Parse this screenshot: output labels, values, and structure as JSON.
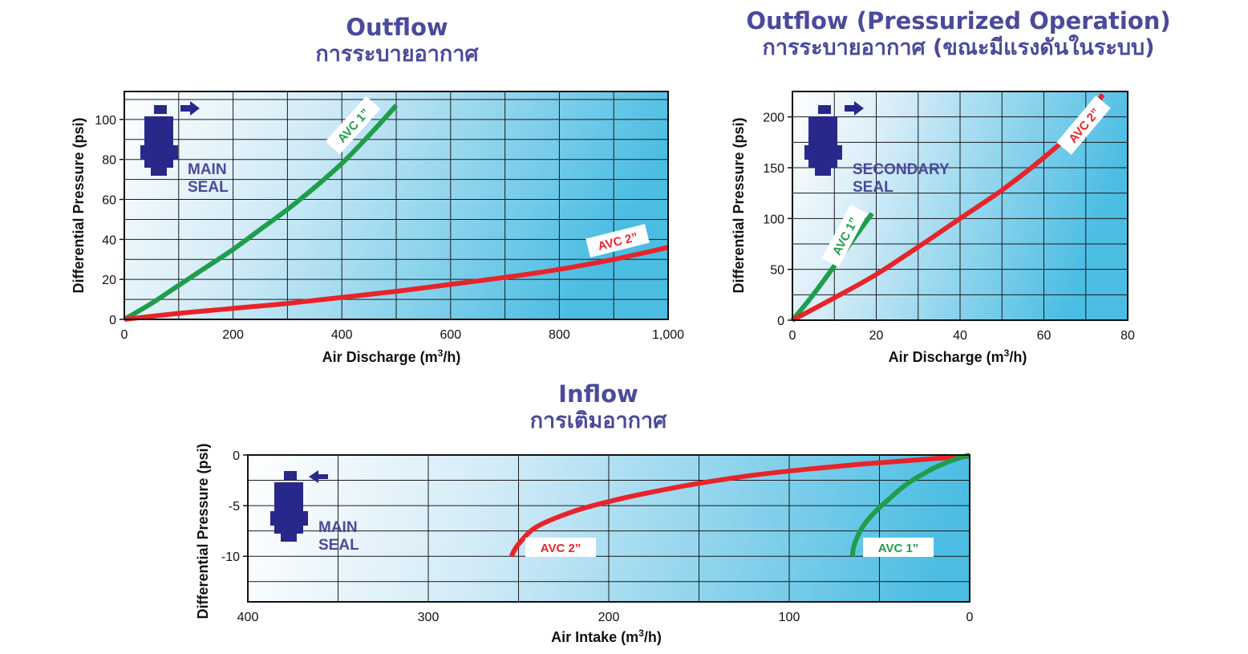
{
  "colors": {
    "title": "#4a4a9c",
    "avc1": "#1e9e4a",
    "avc2": "#e8232a",
    "plot_light": "#ffffff",
    "plot_dark": "#4bbde3",
    "icon": "#28288a"
  },
  "chart_data": [
    {
      "id": "outflow",
      "type": "line",
      "title": "Outflow",
      "subtitle": "การระบายอากาศ",
      "xlabel": "Air Discharge (m3/h)",
      "ylabel": "Differential Pressure (psi)",
      "xlim": [
        0,
        1000
      ],
      "ylim": [
        0,
        114
      ],
      "xticks": [
        0,
        100,
        200,
        300,
        400,
        500,
        600,
        700,
        800,
        900,
        1000
      ],
      "xtick_labels": [
        "0",
        "",
        "200",
        "",
        "400",
        "",
        "600",
        "",
        "800",
        "",
        "1,000"
      ],
      "yticks": [
        0,
        10,
        20,
        30,
        40,
        50,
        60,
        70,
        80,
        90,
        100,
        110
      ],
      "ytick_labels": [
        "0",
        "",
        "20",
        "",
        "40",
        "",
        "60",
        "",
        "80",
        "",
        "100",
        ""
      ],
      "grid": true,
      "icon": {
        "type": "outflow-valve-icon",
        "label_lines": [
          "MAIN",
          "SEAL"
        ]
      },
      "series": [
        {
          "name": "AVC 1”",
          "color": "#1e9e4a",
          "x": [
            0,
            50,
            100,
            150,
            200,
            250,
            300,
            350,
            400,
            450,
            500
          ],
          "y": [
            0,
            8,
            17,
            26,
            35,
            45,
            55,
            66,
            78,
            92,
            107
          ]
        },
        {
          "name": "AVC 2”",
          "color": "#e8232a",
          "x": [
            0,
            100,
            200,
            300,
            400,
            500,
            600,
            700,
            800,
            900,
            1000
          ],
          "y": [
            0,
            3,
            5.5,
            8,
            11,
            14,
            17.5,
            21,
            25,
            30,
            36
          ]
        }
      ]
    },
    {
      "id": "outflow-pressurized",
      "type": "line",
      "title": "Outflow (Pressurized Operation)",
      "subtitle": "การระบายอากาศ (ขณะมีแรงดันในระบบ)",
      "xlabel": "Air Discharge (m3/h)",
      "ylabel": "Differential Pressure (psi)",
      "xlim": [
        0,
        80
      ],
      "ylim": [
        0,
        225
      ],
      "xticks": [
        0,
        10,
        20,
        30,
        40,
        50,
        60,
        70,
        80
      ],
      "xtick_labels": [
        "0",
        "",
        "20",
        "",
        "40",
        "",
        "60",
        "",
        "80"
      ],
      "yticks": [
        0,
        25,
        50,
        75,
        100,
        125,
        150,
        175,
        200
      ],
      "ytick_labels": [
        "0",
        "",
        "50",
        "",
        "100",
        "",
        "150",
        "",
        "200"
      ],
      "grid": true,
      "icon": {
        "type": "outflow-valve-icon",
        "label_lines": [
          "SECONDARY",
          "SEAL"
        ]
      },
      "series": [
        {
          "name": "AVC 1”",
          "color": "#1e9e4a",
          "x": [
            0,
            4,
            8,
            12,
            16,
            19
          ],
          "y": [
            0,
            20,
            42,
            65,
            88,
            105
          ]
        },
        {
          "name": "AVC 2”",
          "color": "#e8232a",
          "x": [
            0,
            10,
            20,
            30,
            40,
            50,
            60,
            70,
            74
          ],
          "y": [
            0,
            22,
            45,
            72,
            100,
            128,
            160,
            197,
            222
          ]
        }
      ]
    },
    {
      "id": "inflow",
      "type": "line",
      "title": "Inflow",
      "subtitle": "การเติมอากาศ",
      "xlabel": "Air Intake (m3/h)",
      "ylabel": "Differential Pressure (psi)",
      "xlim": [
        400,
        0
      ],
      "ylim": [
        -14.5,
        0
      ],
      "xticks": [
        400,
        350,
        300,
        250,
        200,
        150,
        100,
        50,
        0
      ],
      "xtick_labels": [
        "400",
        "",
        "300",
        "",
        "200",
        "",
        "100",
        "",
        "0"
      ],
      "yticks": [
        0,
        -5,
        -10
      ],
      "ytick_labels": [
        "0",
        "-5",
        "-10"
      ],
      "ygrid": [
        0,
        -2.5,
        -5,
        -7.5,
        -10,
        -12.5
      ],
      "grid": true,
      "icon": {
        "type": "inflow-valve-icon",
        "label_lines": [
          "MAIN",
          "SEAL"
        ]
      },
      "series": [
        {
          "name": "AVC 2”",
          "color": "#e8232a",
          "x": [
            254,
            250,
            240,
            220,
            200,
            180,
            150,
            120,
            90,
            60,
            30,
            0
          ],
          "y": [
            -10,
            -8.8,
            -7.1,
            -5.6,
            -4.6,
            -3.8,
            -2.8,
            -2.0,
            -1.4,
            -0.9,
            -0.5,
            -0.1
          ]
        },
        {
          "name": "AVC 1”",
          "color": "#1e9e4a",
          "x": [
            65,
            64,
            60,
            55,
            50,
            45,
            40,
            35,
            30,
            25,
            20,
            15,
            10,
            5,
            0
          ],
          "y": [
            -10,
            -8.9,
            -7.3,
            -6.1,
            -5.2,
            -4.4,
            -3.6,
            -2.9,
            -2.3,
            -1.8,
            -1.3,
            -0.9,
            -0.55,
            -0.25,
            0
          ]
        }
      ]
    }
  ]
}
